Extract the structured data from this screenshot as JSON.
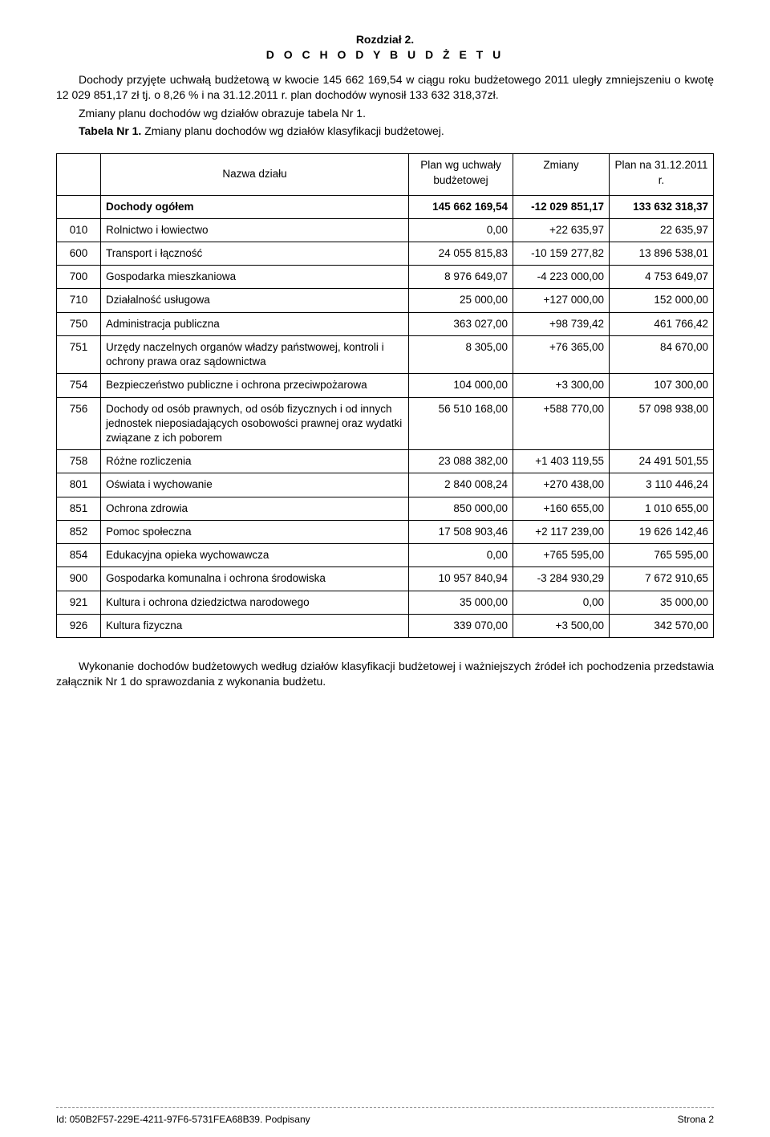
{
  "heading": {
    "chapter": "Rozdział 2.",
    "title": "D O C H O D Y   B U D Ż E T U"
  },
  "intro": {
    "p1": "Dochody przyjęte uchwałą budżetową w kwocie 145 662 169,54 w ciągu roku budżetowego 2011 uległy zmniejszeniu o kwotę 12 029 851,17 zł tj. o 8,26 % i na 31.12.2011 r. plan dochodów wynosił 133 632 318,37zł.",
    "p2": "Zmiany planu dochodów wg działów obrazuje tabela Nr 1.",
    "p3_bold": "Tabela Nr 1.",
    "p3_rest": " Zmiany planu dochodów wg działów klasyfikacji budżetowej."
  },
  "table": {
    "headers": {
      "name": "Nazwa działu",
      "plan_wg": "Plan wg uchwały budżetowej",
      "zmiany": "Zmiany",
      "plan_na": "Plan na 31.12.2011 r."
    },
    "total": {
      "label": "Dochody ogółem",
      "plan_wg": "145 662 169,54",
      "zmiany": "-12 029 851,17",
      "plan_na": "133 632 318,37"
    },
    "rows": [
      {
        "code": "010",
        "name": "Rolnictwo i łowiectwo",
        "plan_wg": "0,00",
        "zmiany": "+22 635,97",
        "plan_na": "22 635,97"
      },
      {
        "code": "600",
        "name": "Transport i łączność",
        "plan_wg": "24 055 815,83",
        "zmiany": "-10 159 277,82",
        "plan_na": "13 896 538,01"
      },
      {
        "code": "700",
        "name": "Gospodarka mieszkaniowa",
        "plan_wg": "8 976 649,07",
        "zmiany": "-4 223 000,00",
        "plan_na": "4 753 649,07"
      },
      {
        "code": "710",
        "name": "Działalność usługowa",
        "plan_wg": "25 000,00",
        "zmiany": "+127 000,00",
        "plan_na": "152 000,00"
      },
      {
        "code": "750",
        "name": "Administracja publiczna",
        "plan_wg": "363 027,00",
        "zmiany": "+98 739,42",
        "plan_na": "461 766,42"
      },
      {
        "code": "751",
        "name": "Urzędy naczelnych organów władzy państwowej, kontroli i ochrony prawa oraz sądownictwa",
        "plan_wg": "8 305,00",
        "zmiany": "+76 365,00",
        "plan_na": "84 670,00"
      },
      {
        "code": "754",
        "name": "Bezpieczeństwo publiczne i ochrona przeciwpożarowa",
        "plan_wg": "104 000,00",
        "zmiany": "+3 300,00",
        "plan_na": "107 300,00"
      },
      {
        "code": "756",
        "name": "Dochody od osób prawnych, od osób fizycznych i od innych jednostek nieposiadających osobowości prawnej oraz wydatki związane z ich poborem",
        "plan_wg": "56 510 168,00",
        "zmiany": "+588 770,00",
        "plan_na": "57 098 938,00"
      },
      {
        "code": "758",
        "name": "Różne rozliczenia",
        "plan_wg": "23 088 382,00",
        "zmiany": "+1 403 119,55",
        "plan_na": "24 491 501,55"
      },
      {
        "code": "801",
        "name": "Oświata i wychowanie",
        "plan_wg": "2 840 008,24",
        "zmiany": "+270 438,00",
        "plan_na": "3 110 446,24"
      },
      {
        "code": "851",
        "name": "Ochrona zdrowia",
        "plan_wg": "850 000,00",
        "zmiany": "+160 655,00",
        "plan_na": "1 010 655,00"
      },
      {
        "code": "852",
        "name": "Pomoc społeczna",
        "plan_wg": "17 508 903,46",
        "zmiany": "+2 117 239,00",
        "plan_na": "19 626 142,46"
      },
      {
        "code": "854",
        "name": "Edukacyjna opieka wychowawcza",
        "plan_wg": "0,00",
        "zmiany": "+765 595,00",
        "plan_na": "765 595,00"
      },
      {
        "code": "900",
        "name": "Gospodarka komunalna i ochrona środowiska",
        "plan_wg": "10 957 840,94",
        "zmiany": "-3 284 930,29",
        "plan_na": "7 672 910,65"
      },
      {
        "code": "921",
        "name": "Kultura i ochrona dziedzictwa narodowego",
        "plan_wg": "35 000,00",
        "zmiany": "0,00",
        "plan_na": "35 000,00"
      },
      {
        "code": "926",
        "name": "Kultura fizyczna",
        "plan_wg": "339 070,00",
        "zmiany": "+3 500,00",
        "plan_na": "342 570,00"
      }
    ],
    "col_widths": {
      "code": "42px",
      "name": "auto",
      "plan_wg": "130px",
      "zmiany": "120px",
      "plan_na": "130px"
    }
  },
  "closing": "Wykonanie dochodów budżetowych według działów klasyfikacji budżetowej i ważniejszych źródeł ich pochodzenia przedstawia załącznik Nr 1 do sprawozdania z wykonania budżetu.",
  "footer": {
    "left": "Id: 050B2F57-229E-4211-97F6-5731FEA68B39. Podpisany",
    "right": "Strona 2"
  },
  "style": {
    "page_bg": "#ffffff",
    "text_color": "#000000",
    "border_color": "#000000",
    "font_family": "Arial"
  }
}
